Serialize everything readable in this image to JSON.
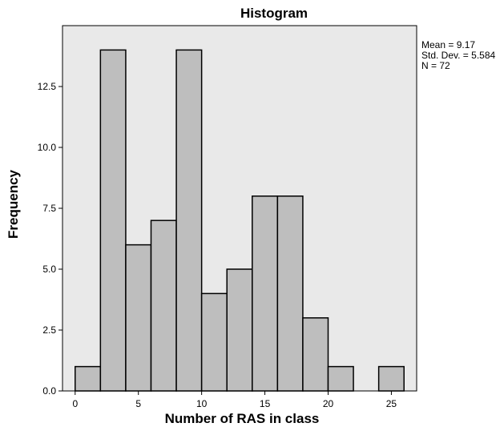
{
  "chart_data": {
    "type": "bar",
    "title": "Histogram",
    "xlabel": "Number of RAS in class",
    "ylabel": "Frequency",
    "bin_width": 2,
    "bins": [
      {
        "x0": 0,
        "x1": 2,
        "count": 1
      },
      {
        "x0": 2,
        "x1": 4,
        "count": 14
      },
      {
        "x0": 4,
        "x1": 6,
        "count": 6
      },
      {
        "x0": 6,
        "x1": 8,
        "count": 7
      },
      {
        "x0": 8,
        "x1": 10,
        "count": 14
      },
      {
        "x0": 10,
        "x1": 12,
        "count": 4
      },
      {
        "x0": 12,
        "x1": 14,
        "count": 5
      },
      {
        "x0": 14,
        "x1": 16,
        "count": 8
      },
      {
        "x0": 16,
        "x1": 18,
        "count": 8
      },
      {
        "x0": 18,
        "x1": 20,
        "count": 3
      },
      {
        "x0": 20,
        "x1": 22,
        "count": 1
      },
      {
        "x0": 22,
        "x1": 24,
        "count": 0
      },
      {
        "x0": 24,
        "x1": 26,
        "count": 1
      }
    ],
    "xlim": [
      -1,
      27
    ],
    "ylim": [
      0,
      15
    ],
    "xticks": [
      0,
      5,
      10,
      15,
      20,
      25
    ],
    "yticks": [
      "0.0",
      "2.5",
      "5.0",
      "7.5",
      "10.0",
      "12.5"
    ],
    "grid": false,
    "stats": {
      "mean": "Mean = 9.17",
      "std": "Std. Dev. = 5.584",
      "n": "N = 72"
    },
    "colors": {
      "plot_background": "#e9e9e9",
      "bar_fill": "#bebebe",
      "bar_stroke": "#000000"
    }
  }
}
